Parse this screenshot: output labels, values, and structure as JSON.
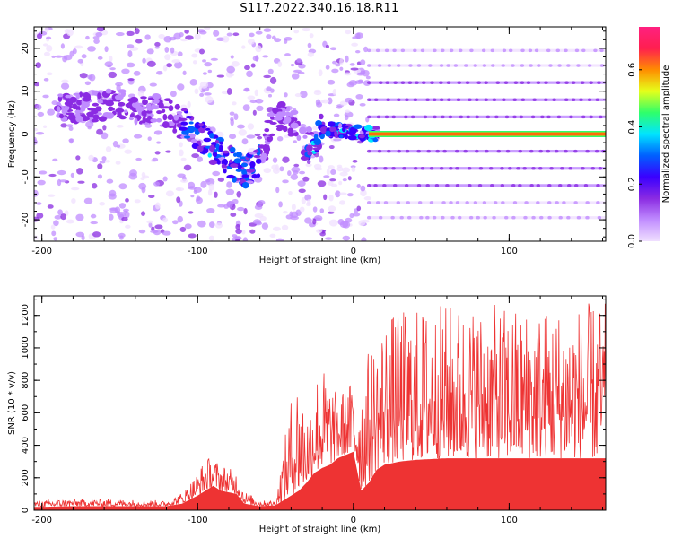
{
  "title": "S117.2022.340.16.18.R11",
  "colors": {
    "snr": "#ee3333",
    "colormap": [
      "#f0e0ff",
      "#c08cff",
      "#8a2be2",
      "#3a00ff",
      "#0060ff",
      "#00e5ff",
      "#2fff6a",
      "#e6ff1a",
      "#ff8c00",
      "#ff1f4f",
      "#ff2080"
    ]
  },
  "chart_data": [
    {
      "type": "heatmap",
      "xlabel": "Height of straight line (km)",
      "ylabel": "Frequency (Hz)",
      "xlim": [
        -205,
        162
      ],
      "ylim": [
        -25,
        25
      ],
      "xticks": [
        -200,
        -100,
        0,
        100
      ],
      "yticks": [
        -20,
        -10,
        0,
        10,
        20
      ],
      "grid": false,
      "ridge": [
        {
          "x": -185,
          "y": 6
        },
        {
          "x": -150,
          "y": 7
        },
        {
          "x": -120,
          "y": 5
        },
        {
          "x": -100,
          "y": 0
        },
        {
          "x": -85,
          "y": -5
        },
        {
          "x": -70,
          "y": -9
        },
        {
          "x": -60,
          "y": -6
        },
        {
          "x": -50,
          "y": 5
        },
        {
          "x": -40,
          "y": 3
        },
        {
          "x": -30,
          "y": -3
        },
        {
          "x": -20,
          "y": 1
        },
        {
          "x": -10,
          "y": 1
        },
        {
          "x": 0,
          "y": 0.5
        },
        {
          "x": 10,
          "y": 0
        },
        {
          "x": 160,
          "y": 0
        }
      ],
      "harmonic_bands_hz": [
        -19.5,
        -16,
        -12,
        -8,
        -4,
        4,
        8,
        12,
        16,
        19.5
      ],
      "colorbar": {
        "label": "Normalized spectral amplitude",
        "ticks": [
          0.0,
          0.2,
          0.4,
          0.6
        ],
        "ticklabels": [
          "0.0",
          "0.2",
          "0.4",
          "0.6"
        ],
        "range": [
          0,
          0.75
        ]
      }
    },
    {
      "type": "area",
      "xlabel": "Height of straight line (km)",
      "ylabel": "SNR (10 * v/v)",
      "xlim": [
        -205,
        162
      ],
      "ylim": [
        0,
        1320
      ],
      "xticks": [
        -200,
        -100,
        0,
        100
      ],
      "yticks": [
        0,
        200,
        400,
        600,
        800,
        1000,
        1200
      ],
      "grid": false,
      "series": [
        {
          "x": [
            -205,
            -180,
            -160,
            -140,
            -120,
            -110,
            -100,
            -95,
            -90,
            -85,
            -80,
            -75,
            -70,
            -60,
            -50,
            -40,
            -35,
            -30,
            -25,
            -20,
            -15,
            -10,
            -5,
            0,
            5,
            10,
            15,
            20,
            30,
            40,
            60,
            80,
            100,
            120,
            140,
            162
          ],
          "y_low": [
            20,
            25,
            25,
            25,
            25,
            40,
            90,
            120,
            150,
            120,
            110,
            100,
            40,
            25,
            30,
            90,
            120,
            170,
            230,
            260,
            280,
            320,
            340,
            360,
            120,
            170,
            250,
            280,
            300,
            310,
            320,
            320,
            320,
            320,
            320,
            320
          ],
          "y_high": [
            60,
            70,
            70,
            65,
            60,
            110,
            230,
            330,
            320,
            290,
            260,
            240,
            120,
            60,
            60,
            700,
            880,
            600,
            850,
            900,
            800,
            720,
            780,
            800,
            820,
            1000,
            1100,
            1200,
            1250,
            1250,
            1280,
            1270,
            1260,
            1260,
            1270,
            1280
          ]
        }
      ]
    }
  ]
}
